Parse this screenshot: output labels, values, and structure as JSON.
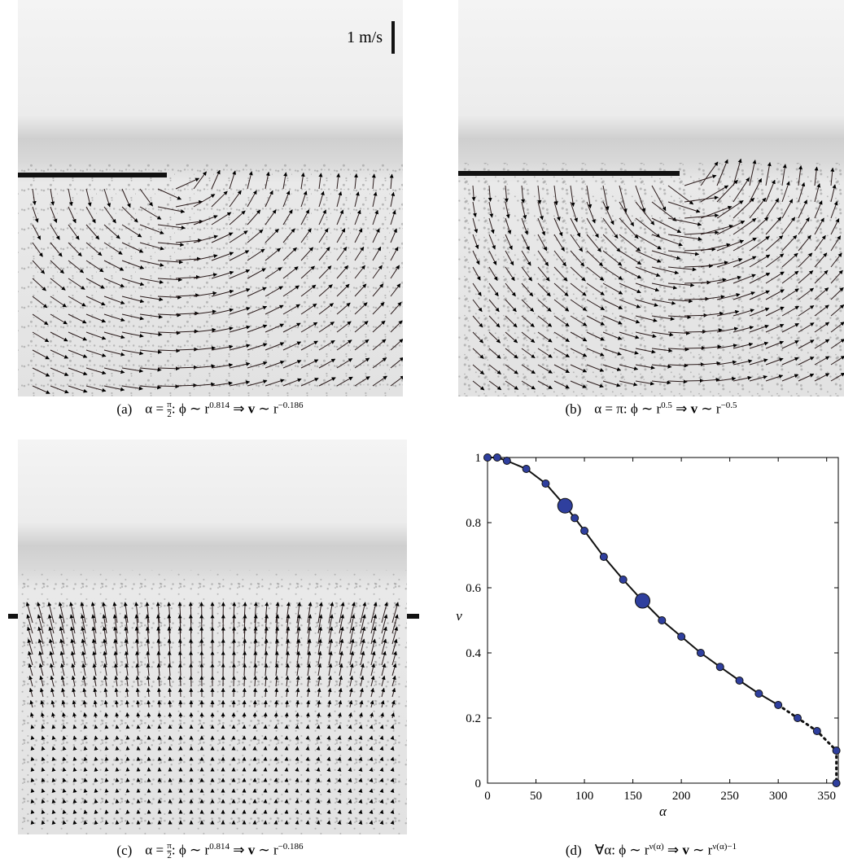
{
  "scale_label": "1 m/s",
  "captions": [
    {
      "label": "(a)",
      "parts": [
        {
          "text": "α = "
        },
        {
          "frac": {
            "num": "π",
            "den": "2"
          }
        },
        {
          "text": ": ϕ ∼ r"
        },
        {
          "sup": "0.814"
        },
        {
          "text": " ⇒ "
        },
        {
          "bold": "v"
        },
        {
          "text": " ∼ r"
        },
        {
          "sup": "−0.186"
        }
      ]
    },
    {
      "label": "(b)",
      "parts": [
        {
          "text": "α = π: ϕ ∼ r"
        },
        {
          "sup": "0.5"
        },
        {
          "text": " ⇒ "
        },
        {
          "bold": "v"
        },
        {
          "text": " ∼ r"
        },
        {
          "sup": "−0.5"
        }
      ]
    },
    {
      "label": "(c)",
      "parts": [
        {
          "text": "α = "
        },
        {
          "frac": {
            "num": "π",
            "den": "2"
          }
        },
        {
          "text": ": ϕ ∼ r"
        },
        {
          "sup": "0.814"
        },
        {
          "text": " ⇒ "
        },
        {
          "bold": "v"
        },
        {
          "text": " ∼ r"
        },
        {
          "sup": "−0.186"
        }
      ]
    },
    {
      "label": "(d)",
      "parts": [
        {
          "text": "∀α: ϕ ∼ r"
        },
        {
          "sup": "ν(α)"
        },
        {
          "text": " ⇒ "
        },
        {
          "bold": "v"
        },
        {
          "text": " ∼ r"
        },
        {
          "sup": "ν(α)−1"
        }
      ]
    }
  ],
  "chart_data": {
    "type": "scatter",
    "x_label": "α",
    "y_label": "ν",
    "x": [
      0,
      10,
      20,
      40,
      60,
      80,
      90,
      100,
      120,
      140,
      160,
      180,
      200,
      220,
      240,
      260,
      280,
      300,
      320,
      340,
      360,
      360
    ],
    "values": [
      1.0,
      1.0,
      0.99,
      0.965,
      0.92,
      0.852,
      0.814,
      0.775,
      0.695,
      0.625,
      0.56,
      0.5,
      0.45,
      0.4,
      0.357,
      0.315,
      0.275,
      0.24,
      0.2,
      0.16,
      0.1,
      0
    ],
    "color": "#2f3f9e",
    "line_color": "#111111",
    "large_markers": [
      5,
      10
    ],
    "dotted_from_index": 17,
    "xlim": [
      0,
      362
    ],
    "ylim": [
      0,
      1
    ],
    "xticks": [
      0,
      50,
      100,
      150,
      200,
      250,
      300,
      350
    ],
    "yticks": [
      0,
      0.2,
      0.4,
      0.6,
      0.8,
      1
    ]
  }
}
